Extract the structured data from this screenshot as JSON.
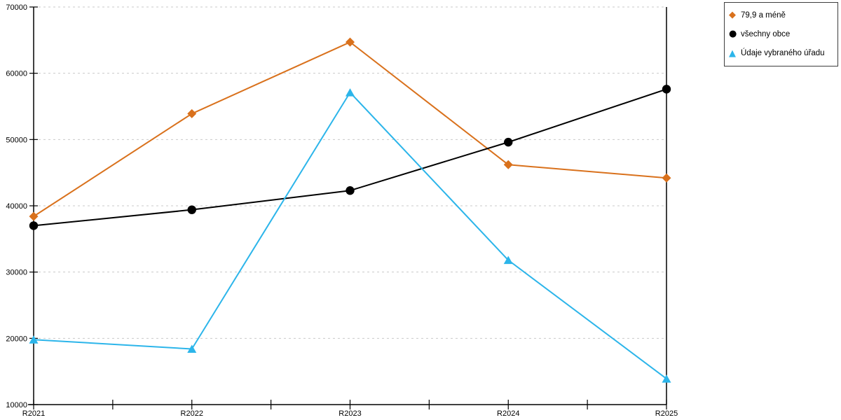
{
  "chart_data": {
    "type": "line",
    "title": "",
    "xlabel": "",
    "ylabel": "",
    "categories": [
      "R2021",
      "R2022",
      "R2023",
      "R2024",
      "R2025"
    ],
    "series": [
      {
        "name": "79,9 a méně",
        "marker": "diamond",
        "color": "#D9711C",
        "values": [
          38400,
          53900,
          64700,
          46200,
          44200
        ]
      },
      {
        "name": "všechny obce",
        "marker": "circle",
        "color": "#000000",
        "values": [
          37000,
          39400,
          42300,
          49600,
          57600
        ]
      },
      {
        "name": "Údaje vybraného úřadu",
        "marker": "triangle",
        "color": "#2CB5EA",
        "values": [
          19800,
          18400,
          57100,
          31800,
          13900
        ]
      }
    ],
    "ylim": [
      10000,
      70000
    ],
    "yticks": [
      10000,
      20000,
      30000,
      40000,
      50000,
      60000,
      70000
    ],
    "grid": "horizontal-dashed",
    "legend_position": "top-right"
  },
  "colors": {
    "grid": "#c9c9c9",
    "axis": "#000000",
    "text": "#000000",
    "background": "#ffffff"
  }
}
